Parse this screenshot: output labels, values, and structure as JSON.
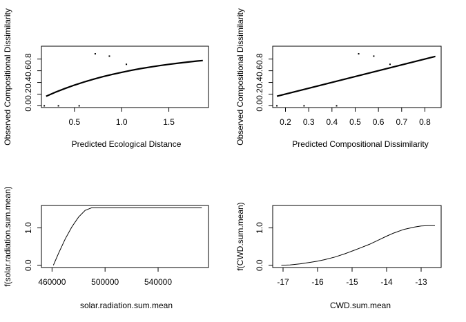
{
  "chart_data": [
    {
      "type": "scatter",
      "xlabel": "Predicted Ecological Distance",
      "ylabel": "Observed Compositional Dissimilarity",
      "x_ticks": [
        0.5,
        1.0,
        1.5
      ],
      "x_tick_labels": [
        "0.5",
        "1.0",
        "1.5"
      ],
      "y_ticks": [
        0.0,
        0.2,
        0.4,
        0.6,
        0.8
      ],
      "y_tick_labels": [
        "0.0",
        "0.2",
        "0.4",
        "0.6",
        "0.8"
      ],
      "xlim": [
        0.15,
        1.92
      ],
      "ylim": [
        -0.03,
        1.02
      ],
      "points": [
        {
          "x": 0.18,
          "y": 0.0
        },
        {
          "x": 0.33,
          "y": 0.0
        },
        {
          "x": 0.55,
          "y": 0.0
        },
        {
          "x": 0.72,
          "y": 0.89
        },
        {
          "x": 0.87,
          "y": 0.85
        },
        {
          "x": 1.05,
          "y": 0.71
        }
      ],
      "fit_line": [
        {
          "x": 0.2,
          "y": 0.163
        },
        {
          "x": 0.3,
          "y": 0.234
        },
        {
          "x": 0.4,
          "y": 0.297
        },
        {
          "x": 0.5,
          "y": 0.355
        },
        {
          "x": 0.6,
          "y": 0.407
        },
        {
          "x": 0.7,
          "y": 0.455
        },
        {
          "x": 0.8,
          "y": 0.498
        },
        {
          "x": 0.9,
          "y": 0.537
        },
        {
          "x": 1.0,
          "y": 0.573
        },
        {
          "x": 1.1,
          "y": 0.606
        },
        {
          "x": 1.2,
          "y": 0.636
        },
        {
          "x": 1.3,
          "y": 0.663
        },
        {
          "x": 1.4,
          "y": 0.687
        },
        {
          "x": 1.5,
          "y": 0.71
        },
        {
          "x": 1.6,
          "y": 0.73
        },
        {
          "x": 1.7,
          "y": 0.749
        },
        {
          "x": 1.8,
          "y": 0.766
        },
        {
          "x": 1.86,
          "y": 0.775
        }
      ]
    },
    {
      "type": "scatter",
      "xlabel": "Predicted Compositional Dissimilarity",
      "ylabel": "Observed Compositional Dissimilarity",
      "x_ticks": [
        0.2,
        0.3,
        0.4,
        0.5,
        0.6,
        0.7,
        0.8
      ],
      "x_tick_labels": [
        "0.2",
        "0.3",
        "0.4",
        "0.5",
        "0.6",
        "0.7",
        "0.8"
      ],
      "y_ticks": [
        0.0,
        0.2,
        0.4,
        0.6,
        0.8
      ],
      "y_tick_labels": [
        "0.0",
        "0.2",
        "0.4",
        "0.6",
        "0.8"
      ],
      "xlim": [
        0.145,
        0.87
      ],
      "ylim": [
        -0.03,
        1.02
      ],
      "points": [
        {
          "x": 0.163,
          "y": 0.0
        },
        {
          "x": 0.28,
          "y": 0.0
        },
        {
          "x": 0.42,
          "y": 0.0
        },
        {
          "x": 0.515,
          "y": 0.89
        },
        {
          "x": 0.58,
          "y": 0.85
        },
        {
          "x": 0.65,
          "y": 0.71
        }
      ],
      "fit_line": [
        {
          "x": 0.163,
          "y": 0.163
        },
        {
          "x": 0.845,
          "y": 0.845
        }
      ]
    },
    {
      "type": "line",
      "xlabel": "solar.radiation.sum.mean",
      "ylabel": "f(solar.radiation.sum.mean)",
      "x_ticks": [
        460000,
        500000,
        540000
      ],
      "x_tick_labels": [
        "460000",
        "500000",
        "540000"
      ],
      "y_ticks": [
        0.0,
        1.0
      ],
      "y_tick_labels": [
        "0.0",
        "1.0"
      ],
      "xlim": [
        452000,
        578000
      ],
      "ylim": [
        -0.06,
        1.6
      ],
      "series": [
        {
          "x": [
            461000,
            465000,
            470000,
            475000,
            480000,
            485000,
            490000,
            495000,
            500000,
            520000,
            550000,
            573000
          ],
          "y": [
            0.0,
            0.33,
            0.71,
            1.03,
            1.29,
            1.47,
            1.54,
            1.54,
            1.54,
            1.54,
            1.54,
            1.54
          ]
        }
      ]
    },
    {
      "type": "line",
      "xlabel": "CWD.sum.mean",
      "ylabel": "f(CWD.sum.mean)",
      "x_ticks": [
        -17,
        -16,
        -15,
        -14,
        -13
      ],
      "x_tick_labels": [
        "-17",
        "-16",
        "-15",
        "-14",
        "-13"
      ],
      "y_ticks": [
        0.0,
        1.0
      ],
      "y_tick_labels": [
        "0.0",
        "1.0"
      ],
      "xlim": [
        -17.3,
        -12.42
      ],
      "ylim": [
        -0.06,
        1.6
      ],
      "series": [
        {
          "x": [
            -17.05,
            -16.8,
            -16.5,
            -16.2,
            -16.0,
            -15.8,
            -15.5,
            -15.2,
            -15.0,
            -14.8,
            -14.5,
            -14.2,
            -14.0,
            -13.8,
            -13.5,
            -13.2,
            -13.0,
            -12.8,
            -12.6
          ],
          "y": [
            0.0,
            0.01,
            0.04,
            0.08,
            0.11,
            0.15,
            0.22,
            0.31,
            0.38,
            0.45,
            0.56,
            0.69,
            0.78,
            0.86,
            0.96,
            1.02,
            1.05,
            1.06,
            1.06
          ]
        }
      ]
    }
  ]
}
